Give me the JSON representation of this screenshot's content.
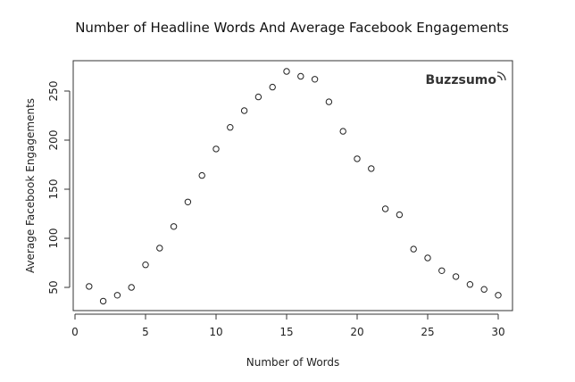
{
  "chart_data": {
    "type": "scatter",
    "title": "Number of Headline Words And Average Facebook Engagements",
    "xlabel": "Number of Words",
    "ylabel": "Average Facebook Engagements",
    "brand": "Buzzsumo",
    "xlim": [
      0,
      31
    ],
    "ylim": [
      28,
      273
    ],
    "x_ticks": [
      0,
      5,
      10,
      15,
      20,
      25,
      30
    ],
    "y_ticks": [
      50,
      100,
      150,
      200,
      250
    ],
    "grid": false,
    "legend": "none",
    "marker": "open-circle",
    "x": [
      1,
      2,
      3,
      4,
      5,
      6,
      7,
      8,
      9,
      10,
      11,
      12,
      13,
      14,
      15,
      16,
      17,
      18,
      19,
      20,
      21,
      22,
      23,
      24,
      25,
      26,
      27,
      28,
      29,
      30
    ],
    "y": [
      51,
      36,
      42,
      50,
      73,
      90,
      112,
      137,
      164,
      191,
      213,
      230,
      244,
      254,
      270,
      265,
      262,
      239,
      209,
      181,
      171,
      130,
      124,
      89,
      80,
      67,
      61,
      53,
      48,
      42
    ]
  }
}
